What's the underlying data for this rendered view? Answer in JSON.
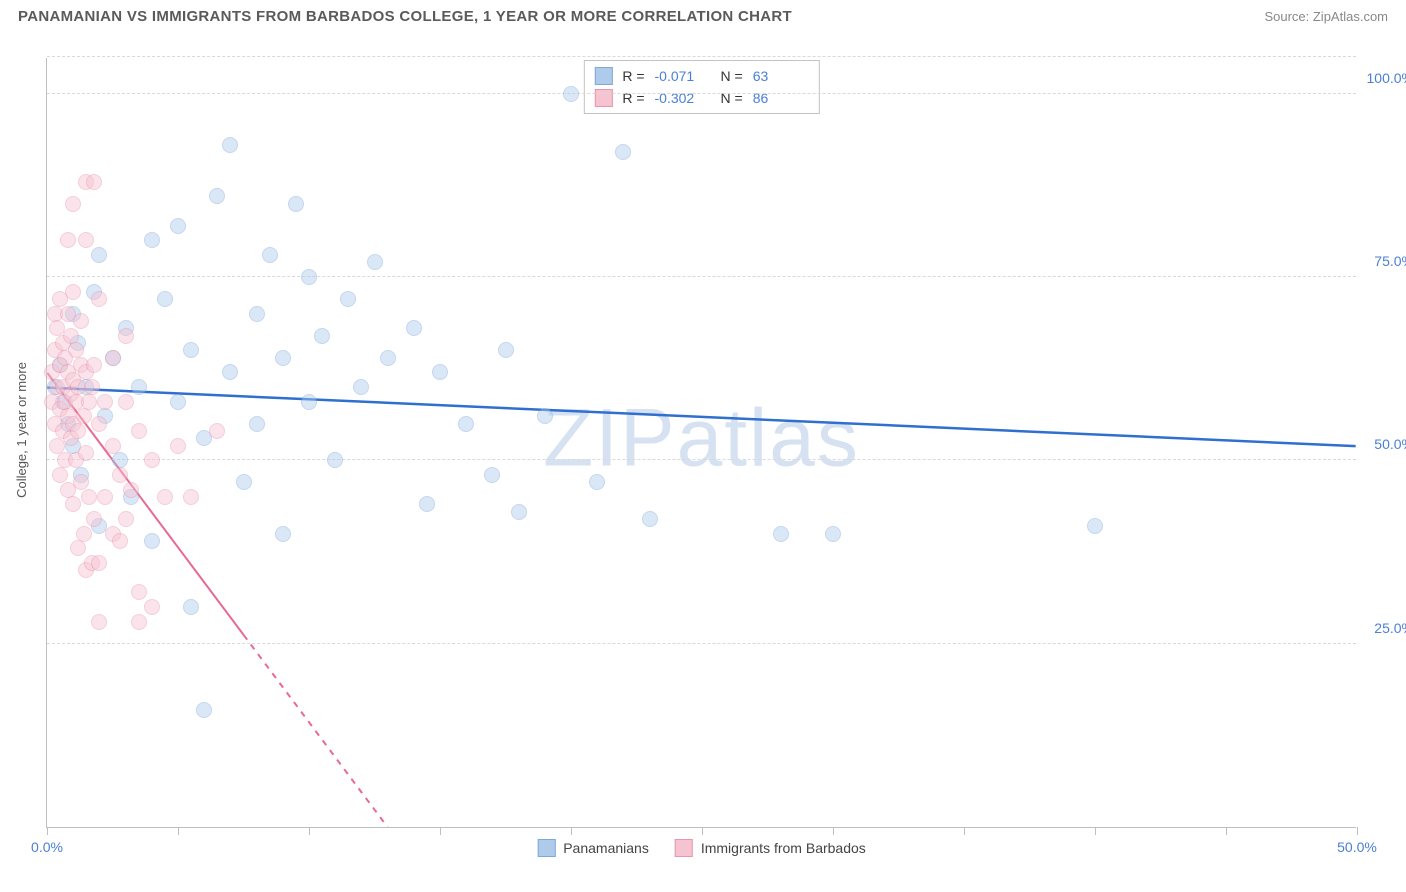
{
  "title": "PANAMANIAN VS IMMIGRANTS FROM BARBADOS COLLEGE, 1 YEAR OR MORE CORRELATION CHART",
  "source": "Source: ZipAtlas.com",
  "watermark": "ZIPatlas",
  "y_axis_title": "College, 1 year or more",
  "chart": {
    "type": "scatter",
    "xlim": [
      0,
      50
    ],
    "ylim": [
      0,
      105
    ],
    "x_ticks": [
      0,
      5,
      10,
      15,
      20,
      25,
      30,
      35,
      40,
      45,
      50
    ],
    "x_tick_labels": {
      "0": "0.0%",
      "50": "50.0%"
    },
    "y_gridlines": [
      25,
      50,
      75,
      100,
      105
    ],
    "y_tick_labels": {
      "25": "25.0%",
      "50": "50.0%",
      "75": "75.0%",
      "100": "100.0%"
    },
    "background_color": "#ffffff",
    "grid_color": "#d9d9d9",
    "axis_color": "#bfbfbf",
    "label_color": "#4a7fd6",
    "marker_radius": 8,
    "marker_opacity": 0.45,
    "series": [
      {
        "name": "Panamanians",
        "color_fill": "#aecbec",
        "color_stroke": "#7fa8da",
        "line_color": "#2f6fd0",
        "line_width": 2.5,
        "R": "-0.071",
        "N": "63",
        "trend": {
          "x1": 0,
          "y1": 60,
          "x2": 50,
          "y2": 52
        },
        "points": [
          [
            0.3,
            60
          ],
          [
            0.5,
            63
          ],
          [
            0.6,
            58
          ],
          [
            0.8,
            55
          ],
          [
            1.0,
            70
          ],
          [
            1.0,
            52
          ],
          [
            1.2,
            66
          ],
          [
            1.3,
            48
          ],
          [
            1.5,
            60
          ],
          [
            1.8,
            73
          ],
          [
            2.0,
            41
          ],
          [
            2.0,
            78
          ],
          [
            2.2,
            56
          ],
          [
            2.5,
            64
          ],
          [
            2.8,
            50
          ],
          [
            3.0,
            68
          ],
          [
            3.2,
            45
          ],
          [
            3.5,
            60
          ],
          [
            4.0,
            80
          ],
          [
            4.0,
            39
          ],
          [
            4.5,
            72
          ],
          [
            5.0,
            58
          ],
          [
            5.0,
            82
          ],
          [
            5.5,
            30
          ],
          [
            5.5,
            65
          ],
          [
            6.0,
            53
          ],
          [
            6.0,
            16
          ],
          [
            6.5,
            86
          ],
          [
            7.0,
            62
          ],
          [
            7.0,
            93
          ],
          [
            7.5,
            47
          ],
          [
            8.0,
            70
          ],
          [
            8.0,
            55
          ],
          [
            8.5,
            78
          ],
          [
            9.0,
            64
          ],
          [
            9.0,
            40
          ],
          [
            9.5,
            85
          ],
          [
            10.0,
            58
          ],
          [
            10.0,
            75
          ],
          [
            10.5,
            67
          ],
          [
            11.0,
            50
          ],
          [
            11.5,
            72
          ],
          [
            12.0,
            60
          ],
          [
            12.5,
            77
          ],
          [
            13.0,
            64
          ],
          [
            14.0,
            68
          ],
          [
            14.5,
            44
          ],
          [
            15.0,
            62
          ],
          [
            16.0,
            55
          ],
          [
            17.0,
            48
          ],
          [
            17.5,
            65
          ],
          [
            18.0,
            43
          ],
          [
            19.0,
            56
          ],
          [
            20.0,
            100
          ],
          [
            21.0,
            47
          ],
          [
            22.0,
            92
          ],
          [
            23.0,
            42
          ],
          [
            28.0,
            40
          ],
          [
            30.0,
            40
          ],
          [
            40.0,
            41
          ]
        ]
      },
      {
        "name": "Immigrants from Barbados",
        "color_fill": "#f6c3d1",
        "color_stroke": "#ea94ae",
        "line_color": "#e86a93",
        "line_width": 2,
        "R": "-0.302",
        "N": "86",
        "trend": {
          "x1": 0,
          "y1": 62,
          "x2": 13,
          "y2": 0
        },
        "trend_dash_from_x": 7.5,
        "points": [
          [
            0.2,
            62
          ],
          [
            0.2,
            58
          ],
          [
            0.3,
            65
          ],
          [
            0.3,
            55
          ],
          [
            0.3,
            70
          ],
          [
            0.4,
            60
          ],
          [
            0.4,
            52
          ],
          [
            0.4,
            68
          ],
          [
            0.5,
            57
          ],
          [
            0.5,
            63
          ],
          [
            0.5,
            48
          ],
          [
            0.5,
            72
          ],
          [
            0.6,
            60
          ],
          [
            0.6,
            54
          ],
          [
            0.6,
            66
          ],
          [
            0.7,
            58
          ],
          [
            0.7,
            50
          ],
          [
            0.7,
            64
          ],
          [
            0.8,
            56
          ],
          [
            0.8,
            62
          ],
          [
            0.8,
            46
          ],
          [
            0.8,
            70
          ],
          [
            0.9,
            59
          ],
          [
            0.9,
            53
          ],
          [
            0.9,
            67
          ],
          [
            1.0,
            61
          ],
          [
            1.0,
            55
          ],
          [
            1.0,
            44
          ],
          [
            1.0,
            73
          ],
          [
            1.1,
            58
          ],
          [
            1.1,
            50
          ],
          [
            1.1,
            65
          ],
          [
            1.2,
            60
          ],
          [
            1.2,
            54
          ],
          [
            1.2,
            38
          ],
          [
            1.3,
            63
          ],
          [
            1.3,
            47
          ],
          [
            1.3,
            69
          ],
          [
            1.4,
            56
          ],
          [
            1.4,
            40
          ],
          [
            1.5,
            62
          ],
          [
            1.5,
            51
          ],
          [
            1.5,
            35
          ],
          [
            1.5,
            80
          ],
          [
            1.5,
            88
          ],
          [
            1.6,
            58
          ],
          [
            1.6,
            45
          ],
          [
            1.7,
            60
          ],
          [
            1.7,
            36
          ],
          [
            1.8,
            63
          ],
          [
            1.8,
            42
          ],
          [
            1.8,
            88
          ],
          [
            2.0,
            55
          ],
          [
            2.0,
            36
          ],
          [
            2.0,
            72
          ],
          [
            2.0,
            28
          ],
          [
            2.2,
            58
          ],
          [
            2.2,
            45
          ],
          [
            2.5,
            52
          ],
          [
            2.5,
            64
          ],
          [
            2.5,
            40
          ],
          [
            2.8,
            48
          ],
          [
            2.8,
            39
          ],
          [
            3.0,
            58
          ],
          [
            3.0,
            42
          ],
          [
            3.0,
            67
          ],
          [
            3.2,
            46
          ],
          [
            3.5,
            54
          ],
          [
            3.5,
            32
          ],
          [
            3.5,
            28
          ],
          [
            4.0,
            50
          ],
          [
            4.0,
            30
          ],
          [
            4.5,
            45
          ],
          [
            5.0,
            52
          ],
          [
            5.5,
            45
          ],
          [
            6.5,
            54
          ],
          [
            0.8,
            80
          ],
          [
            1.0,
            85
          ]
        ]
      }
    ]
  },
  "legend_top": {
    "rows": [
      {
        "swatch_fill": "#aecbec",
        "swatch_stroke": "#7fa8da",
        "r_label": "R =",
        "r_val": "-0.071",
        "n_label": "N =",
        "n_val": "63"
      },
      {
        "swatch_fill": "#f6c3d1",
        "swatch_stroke": "#ea94ae",
        "r_label": "R =",
        "r_val": "-0.302",
        "n_label": "N =",
        "n_val": "86"
      }
    ]
  },
  "legend_bottom": {
    "items": [
      {
        "swatch_fill": "#aecbec",
        "swatch_stroke": "#7fa8da",
        "label": "Panamanians"
      },
      {
        "swatch_fill": "#f6c3d1",
        "swatch_stroke": "#ea94ae",
        "label": "Immigrants from Barbados"
      }
    ]
  }
}
